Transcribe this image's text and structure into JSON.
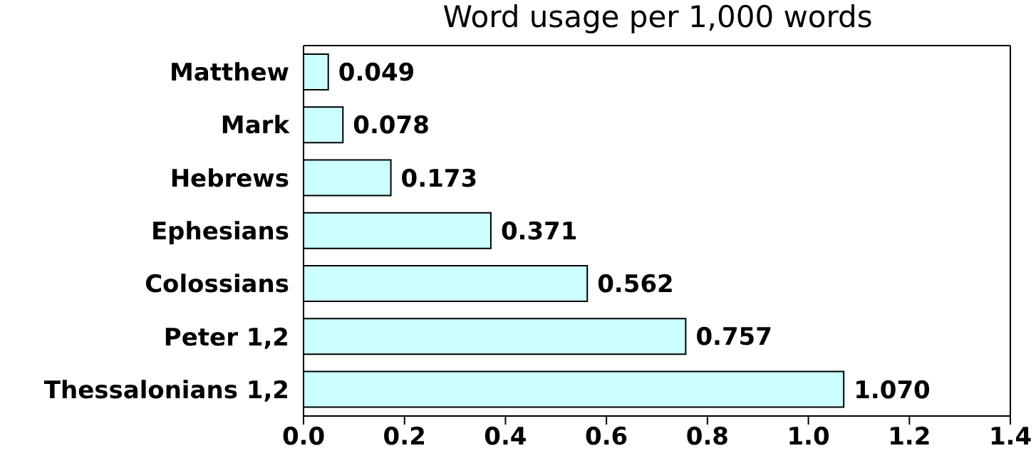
{
  "chart_data": {
    "type": "bar",
    "orientation": "horizontal",
    "title": "Word usage per 1,000 words",
    "categories": [
      "Matthew",
      "Mark",
      "Hebrews",
      "Ephesians",
      "Colossians",
      "Peter 1,2",
      "Thessalonians 1,2"
    ],
    "values": [
      0.049,
      0.078,
      0.173,
      0.371,
      0.562,
      0.757,
      1.07
    ],
    "value_labels": [
      "0.049",
      "0.078",
      "0.173",
      "0.371",
      "0.562",
      "0.757",
      "1.070"
    ],
    "color": "#ccffff",
    "xlim": [
      0,
      1.4
    ],
    "xticks": [
      {
        "value": 0,
        "label": "0.0"
      },
      {
        "value": 0.2,
        "label": "0.2"
      },
      {
        "value": 0.4,
        "label": "0.4"
      },
      {
        "value": 0.6,
        "label": "0.6"
      },
      {
        "value": 0.8,
        "label": "0.8"
      },
      {
        "value": 1,
        "label": "1.0"
      },
      {
        "value": 1.2,
        "label": "1.2"
      },
      {
        "value": 1.4,
        "label": "1.4"
      }
    ]
  }
}
